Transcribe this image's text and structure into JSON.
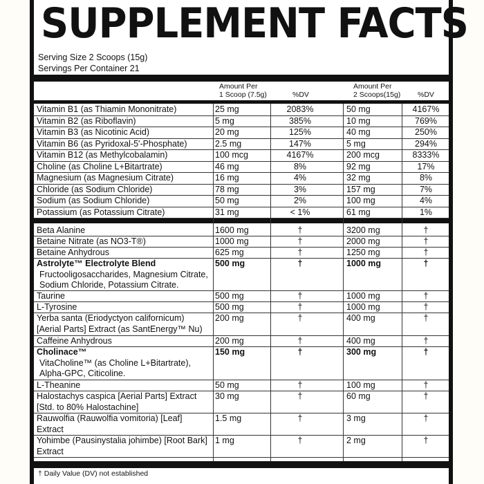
{
  "title": "SUPPLEMENT FACTS",
  "serving_size": "Serving Size 2  Scoops (15g)",
  "servings_per_container": "Servings Per Container  21",
  "columns": {
    "amount1": "Amount Per",
    "amount1b": "1 Scoop (7.5g)",
    "dv1": "%DV",
    "amount2": "Amount Per",
    "amount2b": "2 Scoops(15g)",
    "dv2": "%DV"
  },
  "vitamins": [
    {
      "name": "Vitamin B1 (as Thiamin Mononitrate)",
      "a1": "25 mg",
      "d1": "2083%",
      "a2": "50 mg",
      "d2": "4167%"
    },
    {
      "name": "Vitamin B2 (as Riboflavin)",
      "a1": "5 mg",
      "d1": "385%",
      "a2": "10 mg",
      "d2": "769%"
    },
    {
      "name": "Vitamin B3 (as Nicotinic Acid)",
      "a1": "20 mg",
      "d1": "125%",
      "a2": "40 mg",
      "d2": "250%"
    },
    {
      "name": "Vitamin B6 (as Pyridoxal-5'-Phosphate)",
      "a1": "2.5 mg",
      "d1": "147%",
      "a2": "5 mg",
      "d2": "294%"
    },
    {
      "name": "Vitamin B12 (as Methylcobalamin)",
      "a1": "100 mcg",
      "d1": "4167%",
      "a2": "200 mcg",
      "d2": "8333%"
    },
    {
      "name": "Choline (as Choline L+Bitartrate)",
      "a1": "46 mg",
      "d1": "8%",
      "a2": "92 mg",
      "d2": "17%"
    },
    {
      "name": "Magnesium (as Magnesium Citrate)",
      "a1": "16 mg",
      "d1": "4%",
      "a2": "32 mg",
      "d2": "8%"
    },
    {
      "name": "Chloride (as Sodium Chloride)",
      "a1": "78 mg",
      "d1": "3%",
      "a2": "157 mg",
      "d2": "7%"
    },
    {
      "name": "Sodium (as Sodium Chloride)",
      "a1": "50 mg",
      "d1": "2%",
      "a2": "100 mg",
      "d2": "4%"
    },
    {
      "name": "Potassium (as Potassium Citrate)",
      "a1": "31 mg",
      "d1": "< 1%",
      "a2": "61 mg",
      "d2": "1%"
    }
  ],
  "ingredients": [
    {
      "name": "Beta Alanine",
      "a1": "1600 mg",
      "d1": "†",
      "a2": "3200 mg",
      "d2": "†"
    },
    {
      "name": "Betaine Nitrate  (as NO3-T®)",
      "a1": "1000 mg",
      "d1": "†",
      "a2": "2000 mg",
      "d2": "†"
    },
    {
      "name": "Betaine Anhydrous",
      "a1": "625 mg",
      "d1": "†",
      "a2": "1250 mg",
      "d2": "†"
    },
    {
      "name": "Astrolyte™ Electrolyte Blend",
      "sub": "Fructooligosaccharides, Magnesium Citrate, Sodium Chloride, Potassium Citrate.",
      "a1": "500 mg",
      "d1": "†",
      "a2": "1000 mg",
      "d2": "†"
    },
    {
      "name": "Taurine",
      "a1": "500 mg",
      "d1": "†",
      "a2": "1000 mg",
      "d2": "†"
    },
    {
      "name": "L-Tyrosine",
      "a1": "500 mg",
      "d1": "†",
      "a2": "1000 mg",
      "d2": "†"
    },
    {
      "name": "Yerba santa (Eriodyctyon californicum) [Aerial Parts] Extract (as SantEnergy™ Nu)",
      "a1": "200 mg",
      "d1": "†",
      "a2": "400 mg",
      "d2": "†"
    },
    {
      "name": "Caffeine Anhydrous",
      "a1": "200 mg",
      "d1": "†",
      "a2": "400 mg",
      "d2": "†"
    },
    {
      "name": "Cholinace™",
      "sub": "VitaCholine™ (as Choline L+Bitartrate), Alpha-GPC, Citicoline.",
      "a1": "150 mg",
      "d1": "†",
      "a2": "300 mg",
      "d2": "†"
    },
    {
      "name": "L-Theanine",
      "a1": "50 mg",
      "d1": "†",
      "a2": "100 mg",
      "d2": "†"
    },
    {
      "name": "Halostachys caspica [Aerial Parts] Extract [Std. to 80% Halostachine]",
      "a1": "30 mg",
      "d1": "†",
      "a2": "60 mg",
      "d2": "†"
    },
    {
      "name": "Rauwolfia (Rauwolfia vomitoria) [Leaf] Extract",
      "a1": "1.5 mg",
      "d1": "†",
      "a2": "3 mg",
      "d2": "†"
    },
    {
      "name": "Yohimbe (Pausinystalia johimbe) [Root Bark] Extract",
      "a1": "1 mg",
      "d1": "†",
      "a2": "2 mg",
      "d2": "†"
    }
  ],
  "footnote": "† Daily Value (DV) not established"
}
